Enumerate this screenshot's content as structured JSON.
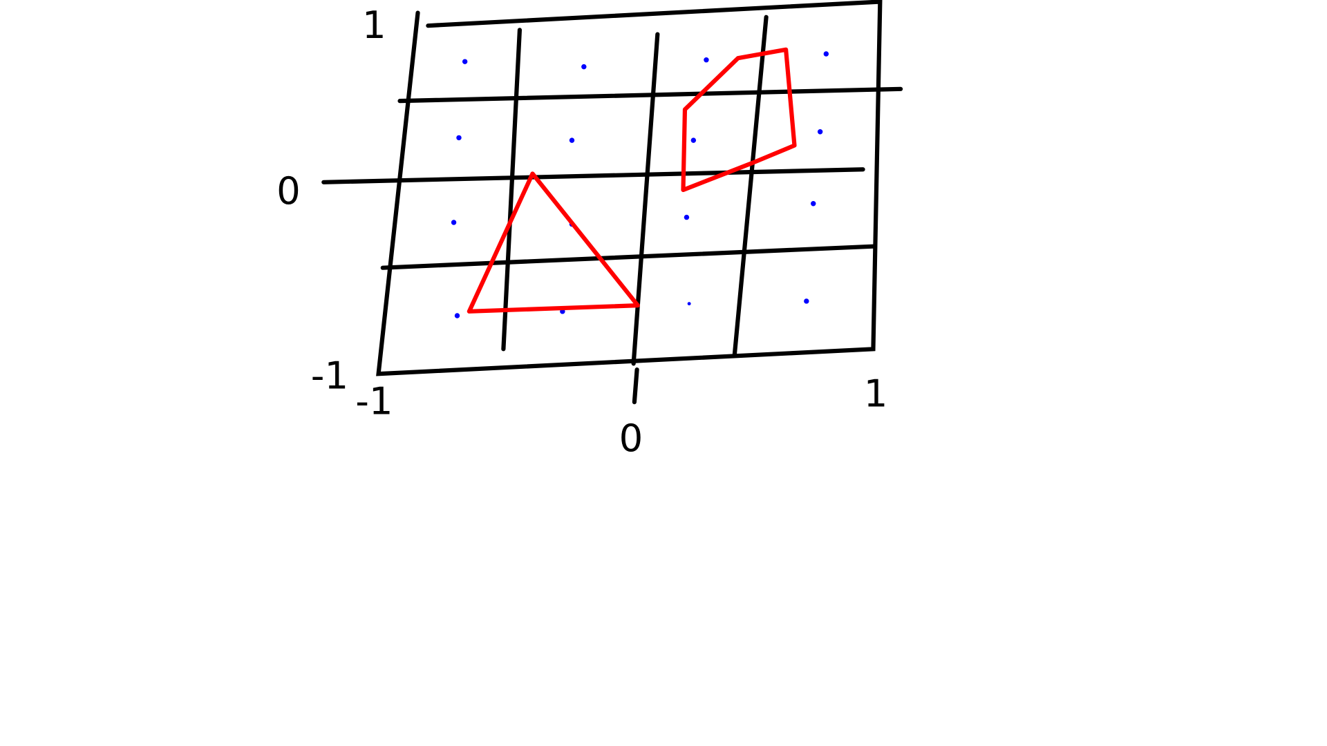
{
  "x_axis": {
    "labels": [
      "-1",
      "0",
      "1"
    ]
  },
  "y_axis": {
    "labels": [
      "1",
      "0",
      "-1"
    ]
  }
}
